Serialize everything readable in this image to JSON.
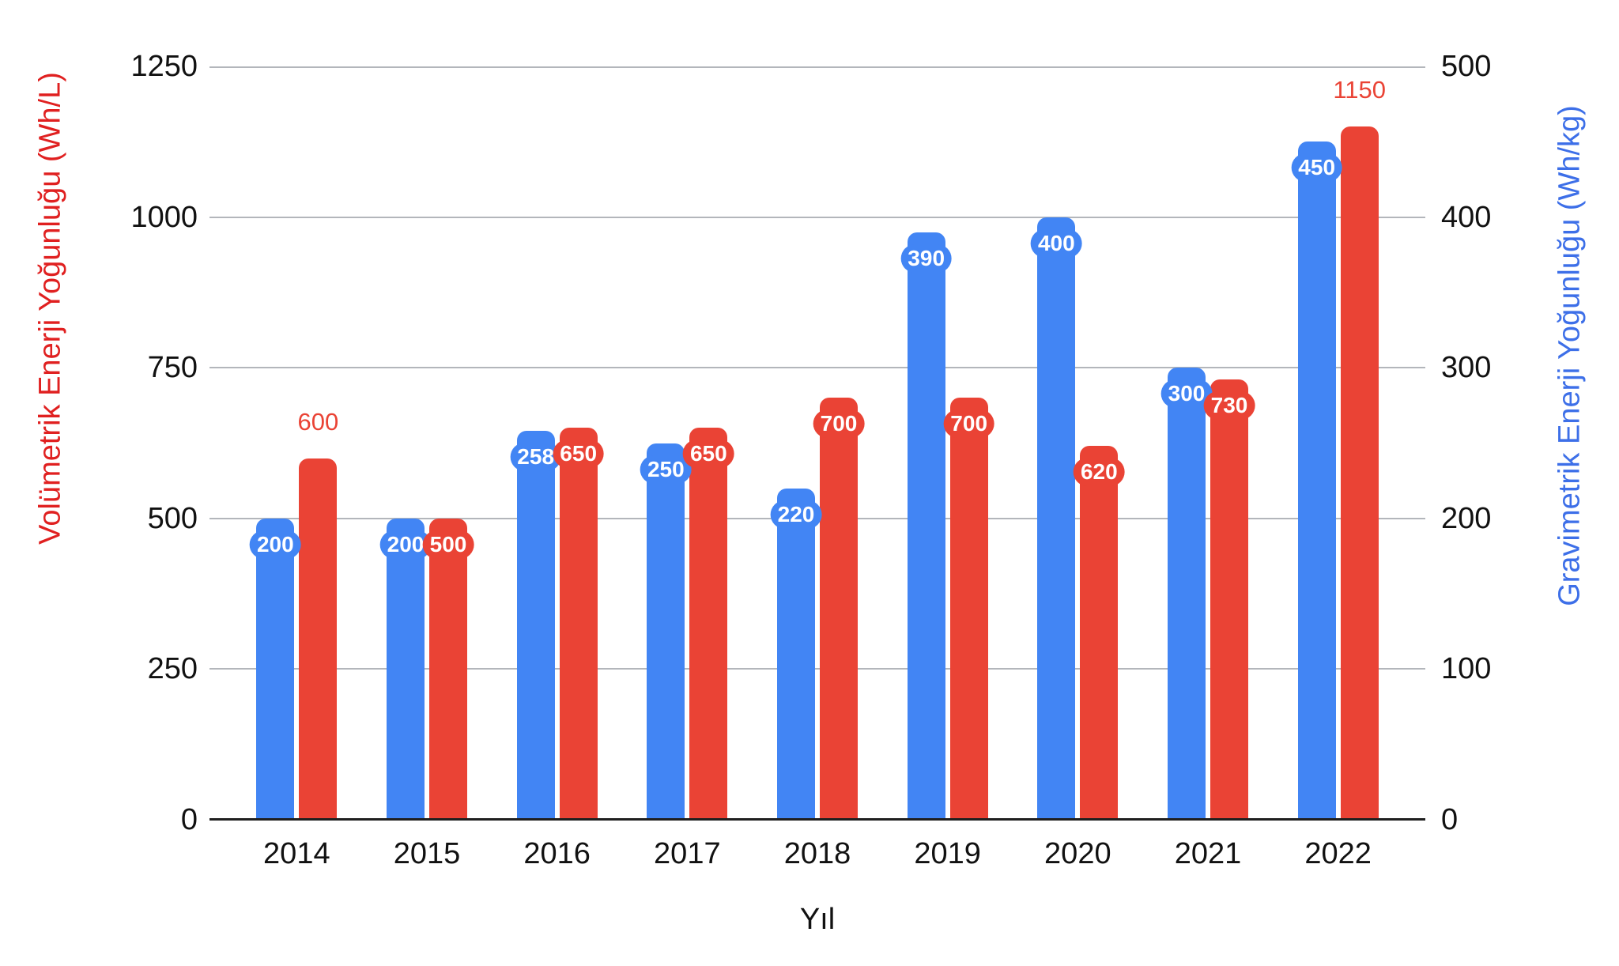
{
  "chart_data": {
    "type": "bar",
    "title": "",
    "categories": [
      "2014",
      "2015",
      "2016",
      "2017",
      "2018",
      "2019",
      "2020",
      "2021",
      "2022"
    ],
    "xlabel": "Yıl",
    "series": [
      {
        "name": "Gravimetrik Enerji Yoğunluğu (Wh/kg)",
        "axis": "right",
        "color": "#4285f4",
        "values": [
          200,
          200,
          258,
          250,
          220,
          390,
          400,
          300,
          450
        ],
        "label_placement": [
          "inside",
          "inside",
          "inside",
          "inside",
          "inside",
          "inside",
          "inside",
          "inside",
          "inside"
        ]
      },
      {
        "name": "Volümetrik Enerji Yoğunluğu (Wh/L)",
        "axis": "left",
        "color": "#ea4335",
        "values": [
          600,
          500,
          650,
          650,
          700,
          700,
          620,
          730,
          1150
        ],
        "label_placement": [
          "outside",
          "inside",
          "inside",
          "inside",
          "inside",
          "inside",
          "inside",
          "inside",
          "outside"
        ]
      }
    ],
    "left_axis": {
      "title": "Volümetrik Enerji Yoğunluğu (Wh/L)",
      "title_color": "#e02020",
      "min": 0,
      "max": 1250,
      "ticks": [
        0,
        250,
        500,
        750,
        1000,
        1250
      ]
    },
    "right_axis": {
      "title": "Gravimetrik Enerji Yoğunluğu (Wh/kg)",
      "title_color": "#3d6fe8",
      "min": 0,
      "max": 500,
      "ticks": [
        0,
        100,
        200,
        300,
        400,
        500
      ]
    },
    "grid": true,
    "legend": "none",
    "gridline_color": "#b3b6bb",
    "baseline_color": "#1f1f1f"
  }
}
